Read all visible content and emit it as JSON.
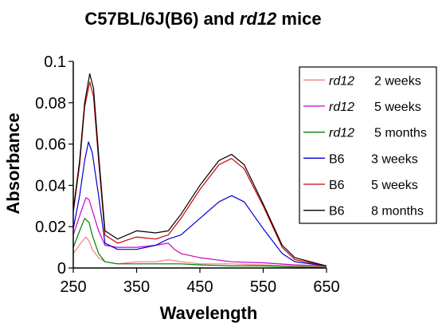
{
  "chart_data": {
    "type": "line",
    "title_parts": [
      {
        "text": "C57BL/6J(B6) and ",
        "italic": false
      },
      {
        "text": "rd12",
        "italic": true
      },
      {
        "text": " mice",
        "italic": false
      }
    ],
    "xlabel": "Wavelength",
    "ylabel": "Absorbance",
    "xlim": [
      250,
      650
    ],
    "ylim": [
      0,
      0.1
    ],
    "xticks": [
      "250",
      "350",
      "450",
      "550",
      "650"
    ],
    "yticks": [
      "0",
      "0.02",
      "0.04",
      "0.06",
      "0.08",
      "0.1"
    ],
    "legend_position": "top-right",
    "series": [
      {
        "strain": "rd12",
        "age": "2 weeks",
        "color": "#f08080",
        "x": [
          250,
          262,
          270,
          275,
          280,
          290,
          300,
          320,
          350,
          380,
          400,
          420,
          450,
          500,
          550,
          600,
          650
        ],
        "y": [
          0.007,
          0.012,
          0.015,
          0.013,
          0.009,
          0.005,
          0.003,
          0.002,
          0.003,
          0.003,
          0.004,
          0.003,
          0.002,
          0.002,
          0.0015,
          0.001,
          0.0005
        ]
      },
      {
        "strain": "rd12",
        "age": "5 weeks",
        "color": "#cc00cc",
        "x": [
          250,
          262,
          270,
          275,
          280,
          290,
          300,
          320,
          350,
          380,
          400,
          410,
          420,
          450,
          500,
          550,
          600,
          650
        ],
        "y": [
          0.016,
          0.027,
          0.034,
          0.033,
          0.028,
          0.018,
          0.011,
          0.01,
          0.01,
          0.011,
          0.012,
          0.009,
          0.007,
          0.005,
          0.003,
          0.0025,
          0.0015,
          0.001
        ]
      },
      {
        "strain": "rd12",
        "age": "5 months",
        "color": "#008000",
        "x": [
          250,
          260,
          268,
          275,
          280,
          290,
          300,
          320,
          350,
          380,
          400,
          420,
          450,
          500,
          550,
          600,
          650
        ],
        "y": [
          0.01,
          0.018,
          0.024,
          0.022,
          0.016,
          0.007,
          0.003,
          0.002,
          0.002,
          0.002,
          0.002,
          0.002,
          0.0015,
          0.001,
          0.001,
          0.0005,
          0.0003
        ]
      },
      {
        "strain": "B6",
        "age": "3 weeks",
        "color": "#0000cc",
        "x": [
          250,
          260,
          268,
          274,
          280,
          290,
          300,
          320,
          350,
          380,
          400,
          420,
          450,
          480,
          500,
          520,
          550,
          580,
          600,
          650
        ],
        "y": [
          0.019,
          0.035,
          0.052,
          0.061,
          0.056,
          0.035,
          0.012,
          0.009,
          0.009,
          0.011,
          0.014,
          0.016,
          0.024,
          0.032,
          0.035,
          0.032,
          0.019,
          0.007,
          0.003,
          0.001
        ]
      },
      {
        "strain": "B6",
        "age": "5 weeks",
        "color": "#cc0000",
        "x": [
          250,
          260,
          268,
          276,
          282,
          290,
          300,
          320,
          350,
          380,
          400,
          420,
          450,
          480,
          500,
          520,
          550,
          580,
          600,
          650
        ],
        "y": [
          0.027,
          0.05,
          0.078,
          0.09,
          0.083,
          0.052,
          0.016,
          0.012,
          0.015,
          0.014,
          0.016,
          0.024,
          0.038,
          0.05,
          0.053,
          0.048,
          0.03,
          0.01,
          0.004,
          0.001
        ]
      },
      {
        "strain": "B6",
        "age": "8 months",
        "color": "#000000",
        "x": [
          250,
          260,
          268,
          276,
          282,
          290,
          300,
          320,
          350,
          380,
          400,
          420,
          450,
          480,
          500,
          520,
          550,
          580,
          600,
          650
        ],
        "y": [
          0.028,
          0.052,
          0.08,
          0.094,
          0.087,
          0.055,
          0.018,
          0.014,
          0.018,
          0.017,
          0.018,
          0.026,
          0.04,
          0.052,
          0.055,
          0.05,
          0.031,
          0.011,
          0.005,
          0.001
        ]
      }
    ]
  }
}
